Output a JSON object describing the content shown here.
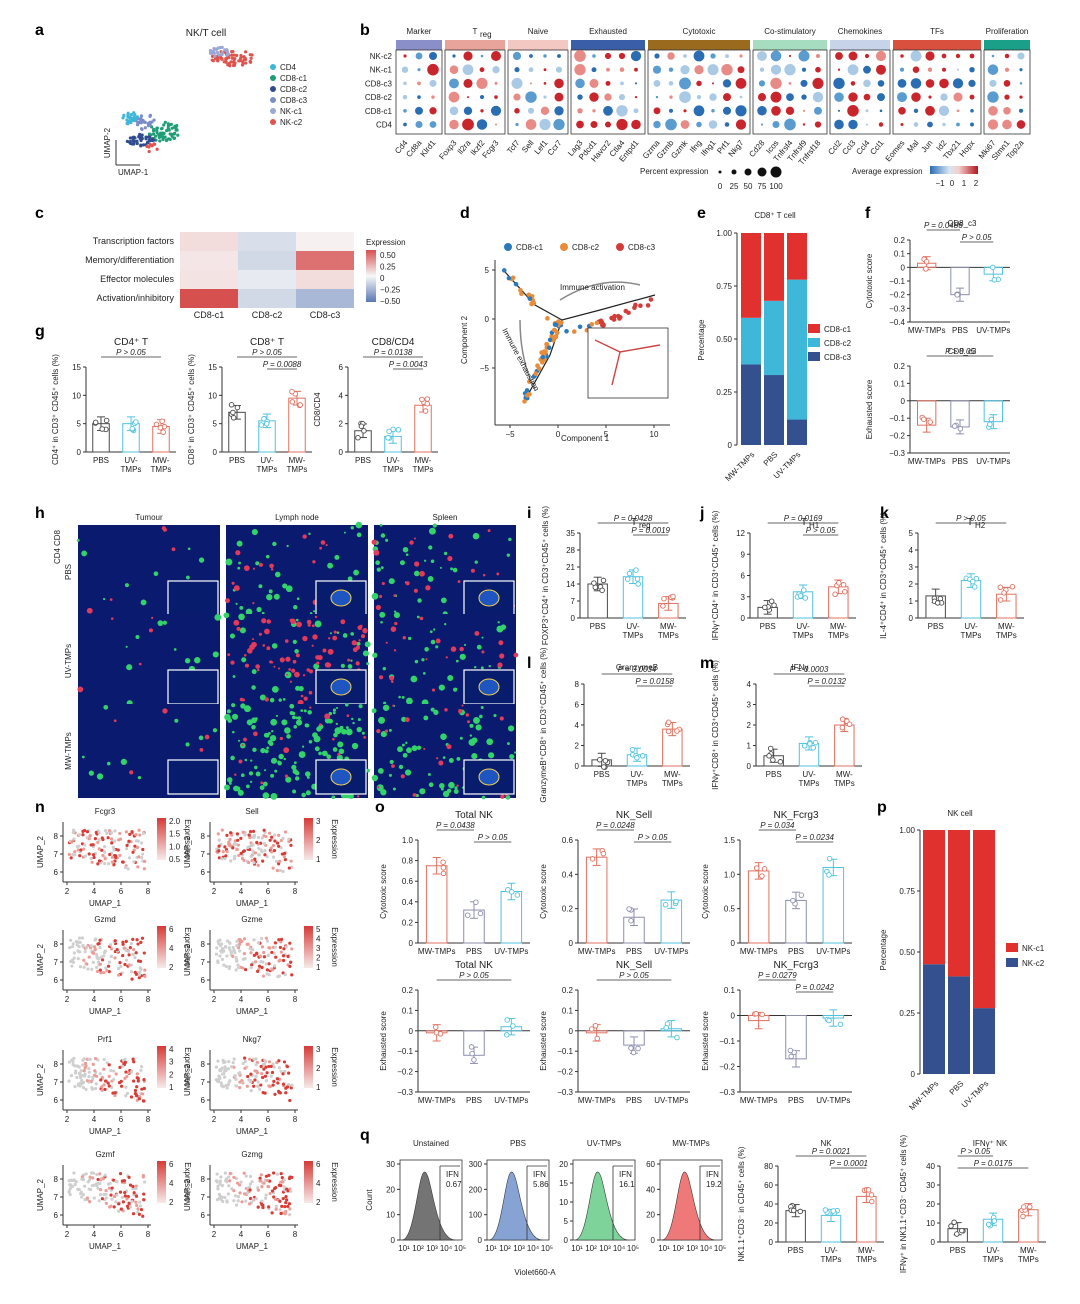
{
  "panels": {
    "a": {
      "letter": "a",
      "title": "NK/T cell",
      "xlabel": "UMAP-1",
      "ylabel": "UMAP-2",
      "legend": [
        "CD4",
        "CD8-c1",
        "CD8-c2",
        "CD8-c3",
        "NK-c1",
        "NK-c2"
      ],
      "colors": {
        "CD4": "#3fb6d8",
        "CD8-c1": "#1f9d77",
        "CD8-c2": "#2f4c8f",
        "CD8-c3": "#7b8cc9",
        "NK-c1": "#9aa8d6",
        "NK-c2": "#e0524d"
      }
    },
    "b": {
      "letter": "b",
      "groups": [
        {
          "name": "Marker",
          "color": "#8b8fc9",
          "genes": [
            "Cd4",
            "Cd8a",
            "Klrd1"
          ]
        },
        {
          "name": "Treg",
          "color": "#e8a39b",
          "genes": [
            "Foxp3",
            "Il2ra",
            "Ikzf2",
            "Fcgr3"
          ]
        },
        {
          "name": "Naive",
          "color": "#f3c8c3",
          "genes": [
            "Tcf7",
            "Sell",
            "Lef1",
            "Ccr7"
          ]
        },
        {
          "name": "Exhausted",
          "color": "#3a5ea8",
          "genes": [
            "Lag3",
            "Pdcd1",
            "Havcr2",
            "Ctla4",
            "Entpd1"
          ]
        },
        {
          "name": "Cytotoxic",
          "color": "#9a6a1e",
          "genes": [
            "Gzma",
            "Gzmb",
            "Gzmk",
            "Ifng",
            "Ifng1",
            "Prf1",
            "Nkg7"
          ]
        },
        {
          "name": "Co-stimulatory",
          "color": "#a6dcc0",
          "genes": [
            "Cd28",
            "Icos",
            "Tnfrsf4",
            "Tnfrsf9",
            "Tnfrsf18"
          ]
        },
        {
          "name": "Chemokines",
          "color": "#c7d3e8",
          "genes": [
            "Ccl2",
            "Ccl3",
            "Ccl4",
            "Ccl1"
          ]
        },
        {
          "name": "TFs",
          "color": "#d9503f",
          "genes": [
            "Eomes",
            "Mal",
            "Jun",
            "Id2",
            "Tbx21",
            "Hopx"
          ]
        },
        {
          "name": "Proliferation",
          "color": "#1aa088",
          "genes": [
            "Mki67",
            "Stmn1",
            "Top2a"
          ]
        }
      ],
      "rows": [
        "NK-c2",
        "NK-c1",
        "CD8-c3",
        "CD8-c2",
        "CD8-c1",
        "CD4"
      ],
      "pct_label": "Percent expression",
      "pct_ticks": [
        "0",
        "25",
        "50",
        "75",
        "100"
      ],
      "avg_label": "Average expression",
      "avg_ticks": [
        "−1",
        "0",
        "1",
        "2"
      ]
    },
    "c": {
      "letter": "c",
      "rows": [
        "Transcription factors",
        "Memory/differentiation",
        "Effector molecules",
        "Activation/inhibitory"
      ],
      "cols": [
        "CD8-c1",
        "CD8-c2",
        "CD8-c3"
      ],
      "values": [
        [
          0.08,
          -0.1,
          0.02
        ],
        [
          0.05,
          -0.12,
          0.4
        ],
        [
          0.06,
          -0.05,
          0.08
        ],
        [
          0.5,
          -0.12,
          -0.25
        ]
      ],
      "legend_title": "Expression",
      "legend_ticks": [
        "0.50",
        "0.25",
        "0",
        "−0.25",
        "−0.50"
      ]
    },
    "d": {
      "letter": "d",
      "legend": [
        "CD8-c1",
        "CD8-c2",
        "CD8-c3"
      ],
      "colors": [
        "#2b7bba",
        "#e88c3a",
        "#d23d3a"
      ],
      "xlabel": "Component 1",
      "ylabel": "Component 2",
      "xticks": [
        "−5",
        "0",
        "5",
        "10"
      ],
      "yticks": [
        "5",
        "0",
        "−5"
      ],
      "ann_activation": "Immune activation",
      "ann_exhaustion": "Immune exhaustion"
    },
    "e": {
      "letter": "e",
      "title": "CD8⁺ T cell",
      "ylabel": "Percentage",
      "chart_data": {
        "type": "bar",
        "categories": [
          "MW-TMPs",
          "PBS",
          "UV-TMPs"
        ],
        "series": [
          {
            "name": "CD8-c3",
            "values": [
              0.38,
              0.33,
              0.12
            ]
          },
          {
            "name": "CD8-c2",
            "values": [
              0.22,
              0.35,
              0.66
            ]
          },
          {
            "name": "CD8-c1",
            "values": [
              0.4,
              0.32,
              0.22
            ]
          }
        ],
        "yticks": [
          "0",
          "0.25",
          "0.50",
          "0.75",
          "1.00"
        ]
      },
      "colors": [
        "#34508e",
        "#3fb7d9",
        "#e0312f"
      ],
      "legend": [
        "CD8-c1",
        "CD8-c2",
        "CD8-c3"
      ]
    },
    "f": {
      "letter": "f",
      "top": {
        "title": "CD8_c3",
        "ylabel": "Cytotoxic score",
        "yticks": [
          "0.2",
          "0.1",
          "0",
          "−0.1",
          "−0.2",
          "−0.3",
          "−0.4"
        ],
        "categories": [
          "MW-TMPs",
          "PBS",
          "UV-TMPs"
        ],
        "values": [
          0.03,
          -0.2,
          -0.05
        ],
        "stats": [
          "P = 0.0486",
          "P > 0.05"
        ]
      },
      "bottom": {
        "title": "CD8_c3",
        "ylabel": "Exhausted score",
        "yticks": [
          "0.2",
          "0.1",
          "0",
          "−0.1",
          "−0.2",
          "−0.3"
        ],
        "categories": [
          "MW-TMPs",
          "PBS",
          "UV-TMPs"
        ],
        "values": [
          -0.14,
          -0.15,
          -0.12
        ],
        "stats": [
          "P > 0.05"
        ]
      }
    },
    "g": {
      "letter": "g",
      "plots": [
        {
          "title": "CD4⁺ T",
          "ylabel": "CD4⁺ in CD3⁺ CD45⁺ cells (%)",
          "yticks": [
            "0",
            "5",
            "10",
            "15"
          ],
          "categories": [
            "PBS",
            "UV-TMPs",
            "MW-TMPs"
          ],
          "values": [
            5,
            5,
            4.5
          ],
          "stats": [
            "P > 0.05"
          ]
        },
        {
          "title": "CD8⁺ T",
          "ylabel": "CD8⁺ in CD3⁺ CD45⁺ cells (%)",
          "yticks": [
            "0",
            "5",
            "10",
            "15"
          ],
          "categories": [
            "PBS",
            "UV-TMPs",
            "MW-TMPs"
          ],
          "values": [
            7,
            5.5,
            9.5
          ],
          "stats": [
            "P > 0.05",
            "P = 0.0088"
          ]
        },
        {
          "title": "CD8/CD4",
          "ylabel": "CD8/CD4",
          "yticks": [
            "0",
            "2",
            "4",
            "6"
          ],
          "categories": [
            "PBS",
            "UV-TMPs",
            "MW-TMPs"
          ],
          "values": [
            1.5,
            1.1,
            3.3
          ],
          "stats": [
            "P = 0.0138",
            "P = 0.0043"
          ]
        }
      ]
    },
    "h": {
      "letter": "h",
      "cols": [
        "Tumour",
        "Lymph node",
        "Spleen"
      ],
      "rows": [
        "PBS",
        "UV-TMPs",
        "MW-TMPs"
      ],
      "ch1": "CD8",
      "ch2": "CD4"
    },
    "i": {
      "letter": "i",
      "title": "T",
      "sub": "reg",
      "ylabel": "FOXP3⁺CD4⁺ in CD3⁺CD45⁺ cells (%)",
      "yticks": [
        "0",
        "7",
        "14",
        "21",
        "28",
        "35"
      ],
      "categories": [
        "PBS",
        "UV-TMPs",
        "MW-TMPs"
      ],
      "values": [
        14,
        17,
        6
      ],
      "stats": [
        "P = 0.0428",
        "P = 0.0019"
      ]
    },
    "j": {
      "letter": "j",
      "title": "T",
      "sub": "H1",
      "ylabel": "IFNγ⁺CD4⁺ in CD3⁺CD45⁺ cells (%)",
      "yticks": [
        "0",
        "3",
        "6",
        "9",
        "12"
      ],
      "categories": [
        "PBS",
        "UV-TMPs",
        "MW-TMPs"
      ],
      "values": [
        1.5,
        3.7,
        4.4
      ],
      "stats": [
        "P = 0.0169",
        "P > 0.05"
      ]
    },
    "k": {
      "letter": "k",
      "title": "T",
      "sub": "H2",
      "ylabel": "IL-4⁺CD4⁺ in CD3⁺CD45⁺ cells (%)",
      "yticks": [
        "0",
        "1",
        "2",
        "3",
        "4",
        "5"
      ],
      "categories": [
        "PBS",
        "UV-TMPs",
        "MW-TMPs"
      ],
      "values": [
        1.3,
        2.2,
        1.4
      ],
      "stats": [
        "P > 0.05"
      ]
    },
    "l": {
      "letter": "l",
      "title": "GranzymeB",
      "ylabel": "GranzymeB⁺CD8⁺ in CD3⁺CD45⁺ cells (%)",
      "yticks": [
        "0",
        "2",
        "4",
        "6",
        "8"
      ],
      "categories": [
        "PBS",
        "UV-TMPs",
        "MW-TMPs"
      ],
      "values": [
        0.6,
        1.1,
        3.6
      ],
      "stats": [
        "P = 0.0034",
        "P = 0.0158"
      ]
    },
    "m": {
      "letter": "m",
      "title": "IFNγ",
      "ylabel": "IFNγ⁺CD8⁺ in CD3⁺CD45⁺ cells (%)",
      "yticks": [
        "0",
        "1",
        "2",
        "3",
        "4"
      ],
      "categories": [
        "PBS",
        "UV-TMPs",
        "MW-TMPs"
      ],
      "values": [
        0.5,
        1.1,
        2.0
      ],
      "stats": [
        "P = 0.0003",
        "P = 0.0132"
      ]
    },
    "n": {
      "letter": "n",
      "xlabel": "UMAP_1",
      "ylabel": "UMAP_2",
      "xticks": [
        "2",
        "4",
        "6",
        "8"
      ],
      "yticks": [
        "6",
        "7",
        "8"
      ],
      "cbar_label": "Expression",
      "maps": [
        {
          "gene": "Fcgr3",
          "ticks": [
            "2.0",
            "1.5",
            "1.0",
            "0.5"
          ]
        },
        {
          "gene": "Sell",
          "ticks": [
            "3",
            "2",
            "1"
          ]
        },
        {
          "gene": "Gzmd",
          "ticks": [
            "6",
            "4",
            "2"
          ]
        },
        {
          "gene": "Gzme",
          "ticks": [
            "5",
            "4",
            "3",
            "2",
            "1"
          ]
        },
        {
          "gene": "Prf1",
          "ticks": [
            "4",
            "3",
            "2",
            "1"
          ]
        },
        {
          "gene": "Nkg7",
          "ticks": [
            "3",
            "2",
            "1"
          ]
        },
        {
          "gene": "Gzmf",
          "ticks": [
            "6",
            "4",
            "2"
          ]
        },
        {
          "gene": "Gzmg",
          "ticks": [
            "6",
            "4",
            "2"
          ]
        }
      ]
    },
    "o": {
      "letter": "o",
      "categories": [
        "MW-TMPs",
        "PBS",
        "UV-TMPs"
      ],
      "plots": [
        {
          "title": "Total NK",
          "ylabel": "Cytotoxic score",
          "yticks": [
            "0",
            "0.2",
            "0.4",
            "0.6",
            "0.8",
            "1.0"
          ],
          "values": [
            0.75,
            0.32,
            0.5
          ],
          "stats": [
            "P = 0.0438",
            "P > 0.05"
          ]
        },
        {
          "title": "NK_Sell",
          "ylabel": "Cytotoxic score",
          "yticks": [
            "0",
            "0.2",
            "0.4",
            "0.6"
          ],
          "values": [
            0.5,
            0.15,
            0.25
          ],
          "stats": [
            "P = 0.0248",
            "P > 0.05"
          ]
        },
        {
          "title": "NK_Fcrg3",
          "ylabel": "Cytotoxic score",
          "yticks": [
            "0",
            "0.5",
            "1.0",
            "1.5"
          ],
          "values": [
            1.05,
            0.62,
            1.1
          ],
          "stats": [
            "P = 0.034",
            "P = 0.0234"
          ]
        },
        {
          "title": "Total NK",
          "ylabel": "Exhausted score",
          "yticks": [
            "0.2",
            "0.1",
            "0",
            "−0.1",
            "−0.2",
            "−0.3"
          ],
          "values": [
            -0.01,
            -0.12,
            0.02
          ],
          "stats": [
            "P > 0.05"
          ]
        },
        {
          "title": "NK_Sell",
          "ylabel": "Exhausted score",
          "yticks": [
            "0.2",
            "0.1",
            "0",
            "−0.1",
            "−0.2",
            "−0.3"
          ],
          "values": [
            -0.01,
            -0.07,
            0.01
          ],
          "stats": [
            "P > 0.05"
          ]
        },
        {
          "title": "NK_Fcrg3",
          "ylabel": "Exhausted score",
          "yticks": [
            "0.1",
            "0",
            "−0.1",
            "−0.2",
            "−0.3"
          ],
          "values": [
            -0.02,
            -0.17,
            -0.01
          ],
          "stats": [
            "P = 0.0279",
            "P = 0.0242"
          ]
        }
      ]
    },
    "p": {
      "letter": "p",
      "title": "NK cell",
      "ylabel": "Percentage",
      "yticks": [
        "0",
        "0.25",
        "0.50",
        "0.75",
        "1.00"
      ],
      "chart_data": {
        "type": "bar",
        "categories": [
          "MW-TMPs",
          "PBS",
          "UV-TMPs"
        ],
        "series": [
          {
            "name": "NK-c2",
            "values": [
              0.45,
              0.4,
              0.27
            ]
          },
          {
            "name": "NK-c1",
            "values": [
              0.55,
              0.6,
              0.73
            ]
          }
        ]
      },
      "colors": [
        "#34508e",
        "#e0312f"
      ],
      "legend": [
        "NK-c1",
        "NK-c2"
      ]
    },
    "q": {
      "letter": "q",
      "hists": [
        {
          "title": "Unstained",
          "gate": "IFN",
          "val": "0.67",
          "yticks": [
            "0",
            "10",
            "20",
            "30"
          ],
          "color": "#666"
        },
        {
          "title": "PBS",
          "gate": "IFN",
          "val": "5.86",
          "yticks": [
            "0",
            "100",
            "200",
            "300"
          ],
          "color": "#7a9ad0"
        },
        {
          "title": "UV-TMPs",
          "gate": "IFN",
          "val": "16.1",
          "yticks": [
            "0",
            "5",
            "10",
            "15",
            "20"
          ],
          "color": "#6fcf8f"
        },
        {
          "title": "MW-TMPs",
          "gate": "IFN",
          "val": "19.2",
          "yticks": [
            "0",
            "20",
            "40",
            "60"
          ],
          "color": "#ee6b6b"
        }
      ],
      "ylabel": "Count",
      "xlabel": "Violet660-A",
      "xticks": [
        "10¹",
        "10²",
        "10³",
        "10⁴",
        "10⁵"
      ],
      "nk": {
        "title": "NK",
        "ylabel": "NK1.1⁺CD3⁻ in CD45⁺ cells (%)",
        "yticks": [
          "0",
          "20",
          "40",
          "60",
          "80"
        ],
        "categories": [
          "PBS",
          "UV-TMPs",
          "MW-TMPs"
        ],
        "values": [
          33,
          28,
          48
        ],
        "stats": [
          "P = 0.0021",
          "P = 0.0001"
        ]
      },
      "ifn": {
        "title": "IFNγ⁺ NK",
        "ylabel": "IFNγ⁺ in NK1.1⁺CD3⁻ CD45⁺ cells (%)",
        "yticks": [
          "0",
          "10",
          "20",
          "30",
          "40"
        ],
        "categories": [
          "PBS",
          "UV-TMPs",
          "MW-TMPs"
        ],
        "values": [
          7,
          12,
          17
        ],
        "stats": [
          "P > 0.05",
          "P = 0.0175"
        ]
      }
    }
  }
}
